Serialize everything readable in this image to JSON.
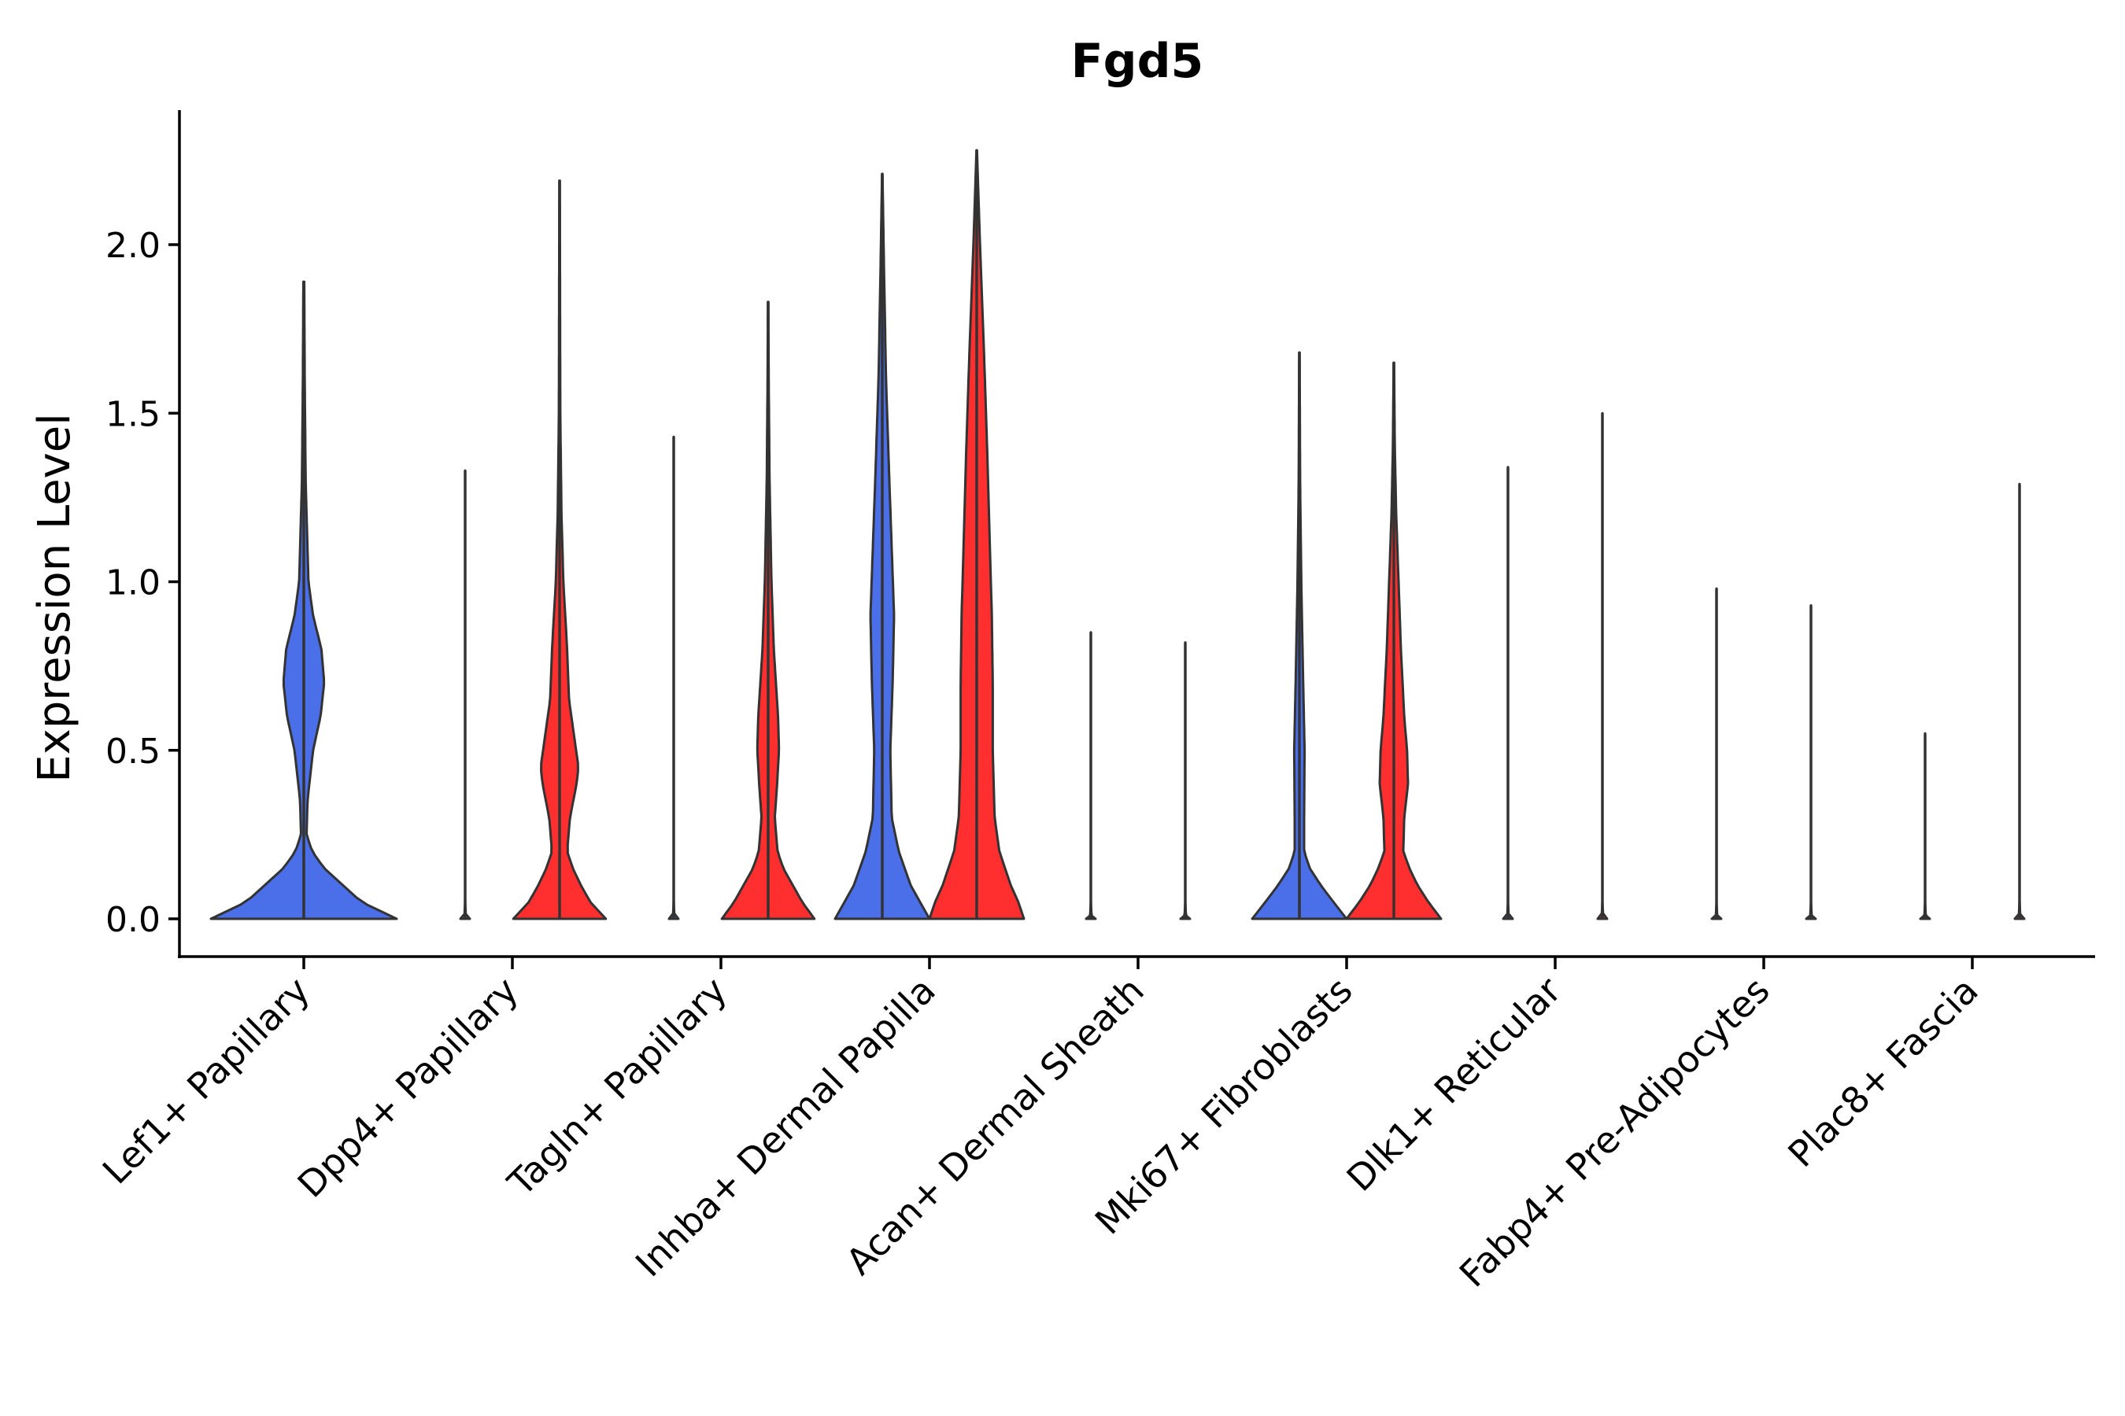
{
  "chart_data": {
    "type": "violin",
    "title": "Fgd5",
    "xlabel": "",
    "ylabel": "Expression Level",
    "ylim": [
      -0.12,
      2.4
    ],
    "yticks": [
      "0.0",
      "0.5",
      "1.0",
      "1.5",
      "2.0"
    ],
    "ytick_values": [
      0,
      0.5,
      1.0,
      1.5,
      2.0
    ],
    "colors": {
      "condition_a": "#4a6fe8",
      "condition_b": "#ff2f2f",
      "outline": "#333333"
    },
    "categories": [
      "Lef1+ Papillary",
      "Dpp4+ Papillary",
      "Tagln+ Papillary",
      "Inhba+ Dermal Papilla",
      "Acan+ Dermal Sheath",
      "Mki67+ Fibroblasts",
      "Dlk1+ Reticular",
      "Fabp4+ Pre-Adipocytes",
      "Plac8+ Fascia"
    ],
    "violins": [
      {
        "category": "Lef1+ Papillary",
        "side": "single",
        "color": "condition_a",
        "max": 1.89,
        "profile": [
          [
            0,
            1.0
          ],
          [
            0.05,
            0.62
          ],
          [
            0.1,
            0.42
          ],
          [
            0.15,
            0.22
          ],
          [
            0.2,
            0.09
          ],
          [
            0.25,
            0.03
          ],
          [
            0.35,
            0.04
          ],
          [
            0.5,
            0.1
          ],
          [
            0.6,
            0.18
          ],
          [
            0.7,
            0.22
          ],
          [
            0.8,
            0.19
          ],
          [
            0.9,
            0.1
          ],
          [
            1.0,
            0.05
          ],
          [
            1.3,
            0.02
          ],
          [
            1.6,
            0.01
          ],
          [
            1.89,
            0.005
          ]
        ]
      },
      {
        "category": "Dpp4+ Papillary",
        "side": "left",
        "color": "condition_a",
        "max": 1.33,
        "profile": [
          [
            0,
            0.1
          ],
          [
            0.01,
            0.015
          ],
          [
            0.05,
            0.0
          ],
          [
            1.33,
            0.0
          ]
        ]
      },
      {
        "category": "Dpp4+ Papillary",
        "side": "right",
        "color": "condition_b",
        "max": 2.19,
        "profile": [
          [
            0,
            0.98
          ],
          [
            0.05,
            0.65
          ],
          [
            0.1,
            0.45
          ],
          [
            0.15,
            0.28
          ],
          [
            0.2,
            0.16
          ],
          [
            0.3,
            0.22
          ],
          [
            0.4,
            0.36
          ],
          [
            0.45,
            0.4
          ],
          [
            0.55,
            0.3
          ],
          [
            0.65,
            0.2
          ],
          [
            0.8,
            0.16
          ],
          [
            1.0,
            0.08
          ],
          [
            1.2,
            0.04
          ],
          [
            1.5,
            0.015
          ],
          [
            2.19,
            0.005
          ]
        ]
      },
      {
        "category": "Tagln+ Papillary",
        "side": "left",
        "color": "condition_a",
        "max": 1.43,
        "profile": [
          [
            0,
            0.1
          ],
          [
            0.01,
            0.015
          ],
          [
            0.05,
            0.0
          ],
          [
            1.43,
            0.0
          ]
        ]
      },
      {
        "category": "Tagln+ Papillary",
        "side": "right",
        "color": "condition_b",
        "max": 1.83,
        "profile": [
          [
            0,
            0.98
          ],
          [
            0.05,
            0.72
          ],
          [
            0.1,
            0.52
          ],
          [
            0.15,
            0.32
          ],
          [
            0.2,
            0.2
          ],
          [
            0.3,
            0.14
          ],
          [
            0.4,
            0.19
          ],
          [
            0.5,
            0.23
          ],
          [
            0.6,
            0.21
          ],
          [
            0.8,
            0.12
          ],
          [
            1.0,
            0.07
          ],
          [
            1.3,
            0.03
          ],
          [
            1.6,
            0.012
          ],
          [
            1.83,
            0.005
          ]
        ]
      },
      {
        "category": "Inhba+ Dermal Papilla",
        "side": "left",
        "color": "condition_a",
        "max": 2.21,
        "profile": [
          [
            0,
            1.0
          ],
          [
            0.05,
            0.8
          ],
          [
            0.1,
            0.6
          ],
          [
            0.2,
            0.35
          ],
          [
            0.3,
            0.2
          ],
          [
            0.5,
            0.17
          ],
          [
            0.7,
            0.22
          ],
          [
            0.9,
            0.25
          ],
          [
            1.1,
            0.2
          ],
          [
            1.3,
            0.15
          ],
          [
            1.6,
            0.08
          ],
          [
            1.9,
            0.04
          ],
          [
            2.21,
            0.005
          ]
        ]
      },
      {
        "category": "Inhba+ Dermal Papilla",
        "side": "right",
        "color": "condition_b",
        "max": 2.28,
        "profile": [
          [
            0,
            1.0
          ],
          [
            0.05,
            0.88
          ],
          [
            0.1,
            0.72
          ],
          [
            0.2,
            0.48
          ],
          [
            0.3,
            0.38
          ],
          [
            0.5,
            0.34
          ],
          [
            0.7,
            0.34
          ],
          [
            0.9,
            0.32
          ],
          [
            1.1,
            0.28
          ],
          [
            1.4,
            0.22
          ],
          [
            1.7,
            0.15
          ],
          [
            2.0,
            0.07
          ],
          [
            2.28,
            0.005
          ]
        ]
      },
      {
        "category": "Acan+ Dermal Sheath",
        "side": "left",
        "color": "condition_a",
        "max": 0.85,
        "profile": [
          [
            0,
            0.1
          ],
          [
            0.01,
            0.015
          ],
          [
            0.05,
            0.0
          ],
          [
            0.85,
            0.0
          ]
        ]
      },
      {
        "category": "Acan+ Dermal Sheath",
        "side": "right",
        "color": "condition_b",
        "max": 0.82,
        "profile": [
          [
            0,
            0.1
          ],
          [
            0.01,
            0.015
          ],
          [
            0.05,
            0.0
          ],
          [
            0.82,
            0.0
          ]
        ]
      },
      {
        "category": "Mki67+ Fibroblasts",
        "side": "left",
        "color": "condition_a",
        "max": 1.68,
        "profile": [
          [
            0,
            1.0
          ],
          [
            0.05,
            0.72
          ],
          [
            0.1,
            0.45
          ],
          [
            0.15,
            0.22
          ],
          [
            0.2,
            0.1
          ],
          [
            0.3,
            0.1
          ],
          [
            0.5,
            0.11
          ],
          [
            0.7,
            0.08
          ],
          [
            1.0,
            0.04
          ],
          [
            1.3,
            0.015
          ],
          [
            1.68,
            0.005
          ]
        ]
      },
      {
        "category": "Mki67+ Fibroblasts",
        "side": "right",
        "color": "condition_b",
        "max": 1.65,
        "profile": [
          [
            0,
            1.0
          ],
          [
            0.05,
            0.73
          ],
          [
            0.1,
            0.5
          ],
          [
            0.15,
            0.33
          ],
          [
            0.2,
            0.2
          ],
          [
            0.3,
            0.22
          ],
          [
            0.4,
            0.3
          ],
          [
            0.5,
            0.28
          ],
          [
            0.6,
            0.22
          ],
          [
            0.8,
            0.15
          ],
          [
            1.0,
            0.1
          ],
          [
            1.2,
            0.05
          ],
          [
            1.4,
            0.02
          ],
          [
            1.65,
            0.005
          ]
        ]
      },
      {
        "category": "Dlk1+ Reticular",
        "side": "left",
        "color": "condition_a",
        "max": 1.34,
        "profile": [
          [
            0,
            0.1
          ],
          [
            0.01,
            0.015
          ],
          [
            0.05,
            0.0
          ],
          [
            1.34,
            0.0
          ]
        ]
      },
      {
        "category": "Dlk1+ Reticular",
        "side": "right",
        "color": "condition_b",
        "max": 1.5,
        "profile": [
          [
            0,
            0.1
          ],
          [
            0.01,
            0.015
          ],
          [
            0.05,
            0.0
          ],
          [
            1.5,
            0.0
          ]
        ]
      },
      {
        "category": "Fabp4+ Pre-Adipocytes",
        "side": "left",
        "color": "condition_a",
        "max": 0.98,
        "profile": [
          [
            0,
            0.1
          ],
          [
            0.01,
            0.015
          ],
          [
            0.05,
            0.0
          ],
          [
            0.98,
            0.0
          ]
        ]
      },
      {
        "category": "Fabp4+ Pre-Adipocytes",
        "side": "right",
        "color": "condition_b",
        "max": 0.93,
        "profile": [
          [
            0,
            0.1
          ],
          [
            0.01,
            0.015
          ],
          [
            0.05,
            0.0
          ],
          [
            0.93,
            0.0
          ]
        ]
      },
      {
        "category": "Plac8+ Fascia",
        "side": "left",
        "color": "condition_a",
        "max": 0.55,
        "profile": [
          [
            0,
            0.1
          ],
          [
            0.01,
            0.015
          ],
          [
            0.05,
            0.0
          ],
          [
            0.55,
            0.0
          ]
        ]
      },
      {
        "category": "Plac8+ Fascia",
        "side": "right",
        "color": "condition_b",
        "max": 1.29,
        "profile": [
          [
            0,
            0.1
          ],
          [
            0.01,
            0.015
          ],
          [
            0.05,
            0.0
          ],
          [
            1.29,
            0.0
          ]
        ]
      }
    ]
  }
}
